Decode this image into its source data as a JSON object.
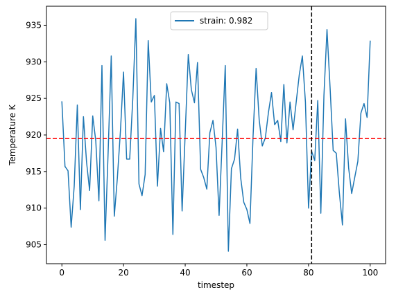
{
  "chart_data": {
    "type": "line",
    "title": "",
    "xlabel": "timestep",
    "ylabel": "Temperature K",
    "xlim": [
      -5,
      105
    ],
    "ylim": [
      902.4,
      937.6
    ],
    "xticks": [
      0,
      20,
      40,
      60,
      80,
      100
    ],
    "yticks": [
      905,
      910,
      915,
      920,
      925,
      930,
      935
    ],
    "grid": false,
    "legend": {
      "position": "upper-center"
    },
    "series": [
      {
        "name": "strain: 0.982",
        "color": "#1f77b4",
        "x": [
          0,
          1,
          2,
          3,
          4,
          5,
          6,
          7,
          8,
          9,
          10,
          11,
          12,
          13,
          14,
          15,
          16,
          17,
          18,
          19,
          20,
          21,
          22,
          23,
          24,
          25,
          26,
          27,
          28,
          29,
          30,
          31,
          32,
          33,
          34,
          35,
          36,
          37,
          38,
          39,
          40,
          41,
          42,
          43,
          44,
          45,
          46,
          47,
          48,
          49,
          50,
          51,
          52,
          53,
          54,
          55,
          56,
          57,
          58,
          59,
          60,
          61,
          62,
          63,
          64,
          65,
          66,
          67,
          68,
          69,
          70,
          71,
          72,
          73,
          74,
          75,
          76,
          77,
          78,
          79,
          80,
          81,
          82,
          83,
          84,
          85,
          86,
          87,
          88,
          89,
          90,
          91,
          92,
          93,
          94,
          95,
          96,
          97,
          98,
          99,
          100
        ],
        "values": [
          924.6,
          915.7,
          915.1,
          907.4,
          913.0,
          924.1,
          909.8,
          922.5,
          916.3,
          912.4,
          922.6,
          919.2,
          911.0,
          929.5,
          905.6,
          917.6,
          930.8,
          908.9,
          914.1,
          920.6,
          928.6,
          916.7,
          916.7,
          925.0,
          935.9,
          913.3,
          911.7,
          914.6,
          932.9,
          924.5,
          925.4,
          913.0,
          920.9,
          917.7,
          927.0,
          924.4,
          906.4,
          924.5,
          924.3,
          909.6,
          920.1,
          931.0,
          926.2,
          924.4,
          929.9,
          915.3,
          914.2,
          912.6,
          920.3,
          922.0,
          918.3,
          909.0,
          919.2,
          929.5,
          904.1,
          915.4,
          916.7,
          920.8,
          914.1,
          910.8,
          909.8,
          907.9,
          919.6,
          929.1,
          922.1,
          918.5,
          919.6,
          923.1,
          925.8,
          921.4,
          922.0,
          919.1,
          926.9,
          918.9,
          924.5,
          920.7,
          924.5,
          928.2,
          930.8,
          924.5,
          910.0,
          917.8,
          916.5,
          924.7,
          909.3,
          925.4,
          934.4,
          926.4,
          917.9,
          917.5,
          912.1,
          907.7,
          922.2,
          915.5,
          912.0,
          914.2,
          916.4,
          923.0,
          924.3,
          922.4,
          932.9
        ]
      }
    ],
    "reference_lines": [
      {
        "orientation": "horizontal",
        "value": 919.5,
        "color": "#ff0000",
        "style": "dashed"
      },
      {
        "orientation": "vertical",
        "value": 81,
        "color": "#000000",
        "style": "dashed"
      }
    ]
  }
}
